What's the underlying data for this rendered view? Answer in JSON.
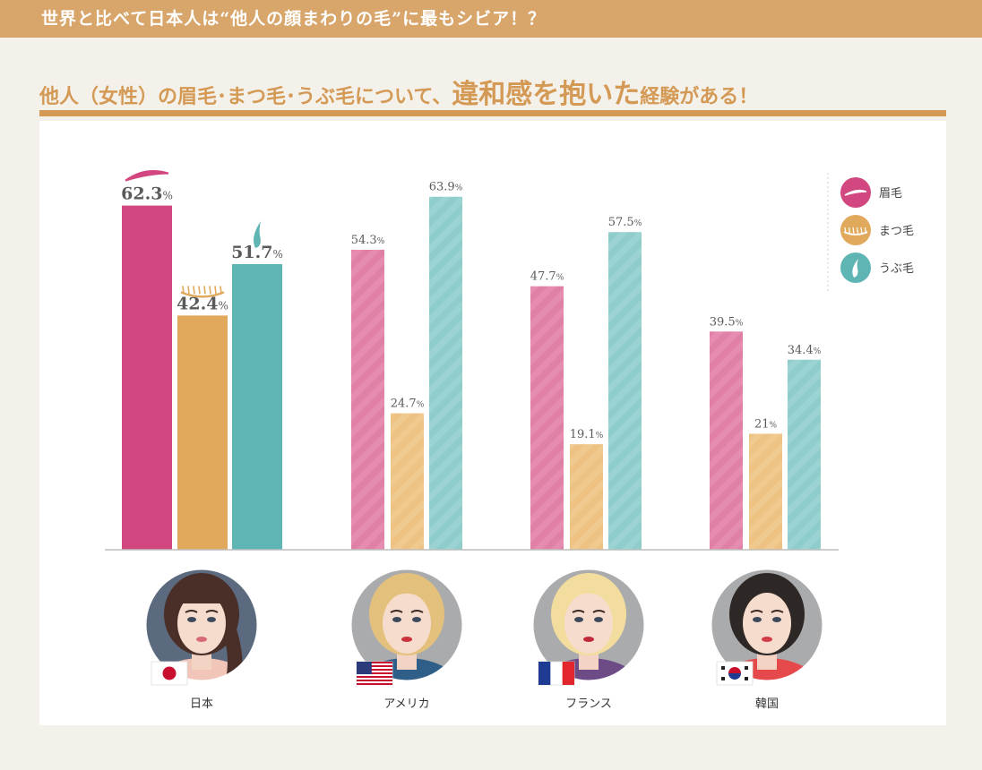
{
  "banner": {
    "text": "世界と比べて日本人は“他人の顔まわりの毛”に最もシビア！？"
  },
  "heading": {
    "part1": "他人（女性）の眉毛･まつ毛･うぶ毛について、",
    "part2": "違和感を抱いた",
    "part3": "経験がある！"
  },
  "colors": {
    "eyebrow": "#d24780",
    "eyelash": "#e0a95c",
    "vellus": "#5fb4b4",
    "eyebrow_light": "#e180a6",
    "eyelash_light": "#edc283",
    "vellus_light": "#8fcdcc",
    "accent": "#d49a55"
  },
  "chart_data": {
    "type": "bar",
    "categories": [
      "日本",
      "アメリカ",
      "フランス",
      "韓国"
    ],
    "series": [
      {
        "name": "眉毛",
        "values": [
          62.3,
          54.3,
          47.7,
          39.5
        ]
      },
      {
        "name": "まつ毛",
        "values": [
          42.4,
          24.7,
          19.1,
          21
        ]
      },
      {
        "name": "うぶ毛",
        "values": [
          51.7,
          63.9,
          57.5,
          34.4
        ]
      }
    ],
    "value_labels": [
      [
        "62.3",
        "42.4",
        "51.7"
      ],
      [
        "54.3",
        "24.7",
        "63.9"
      ],
      [
        "47.7",
        "19.1",
        "57.5"
      ],
      [
        "39.5",
        "21",
        "34.4"
      ]
    ],
    "unit": "%",
    "ylim": [
      0,
      70
    ],
    "legend_position": "top-right",
    "grid": false
  },
  "icons": {
    "series": [
      "eyebrow-icon",
      "eyelash-icon",
      "vellus-hair-icon"
    ],
    "flags": [
      "japan-flag",
      "usa-flag",
      "france-flag",
      "korea-flag"
    ],
    "avatars": [
      "japanese-woman-avatar",
      "american-woman-avatar",
      "french-woman-avatar",
      "korean-woman-avatar"
    ]
  }
}
